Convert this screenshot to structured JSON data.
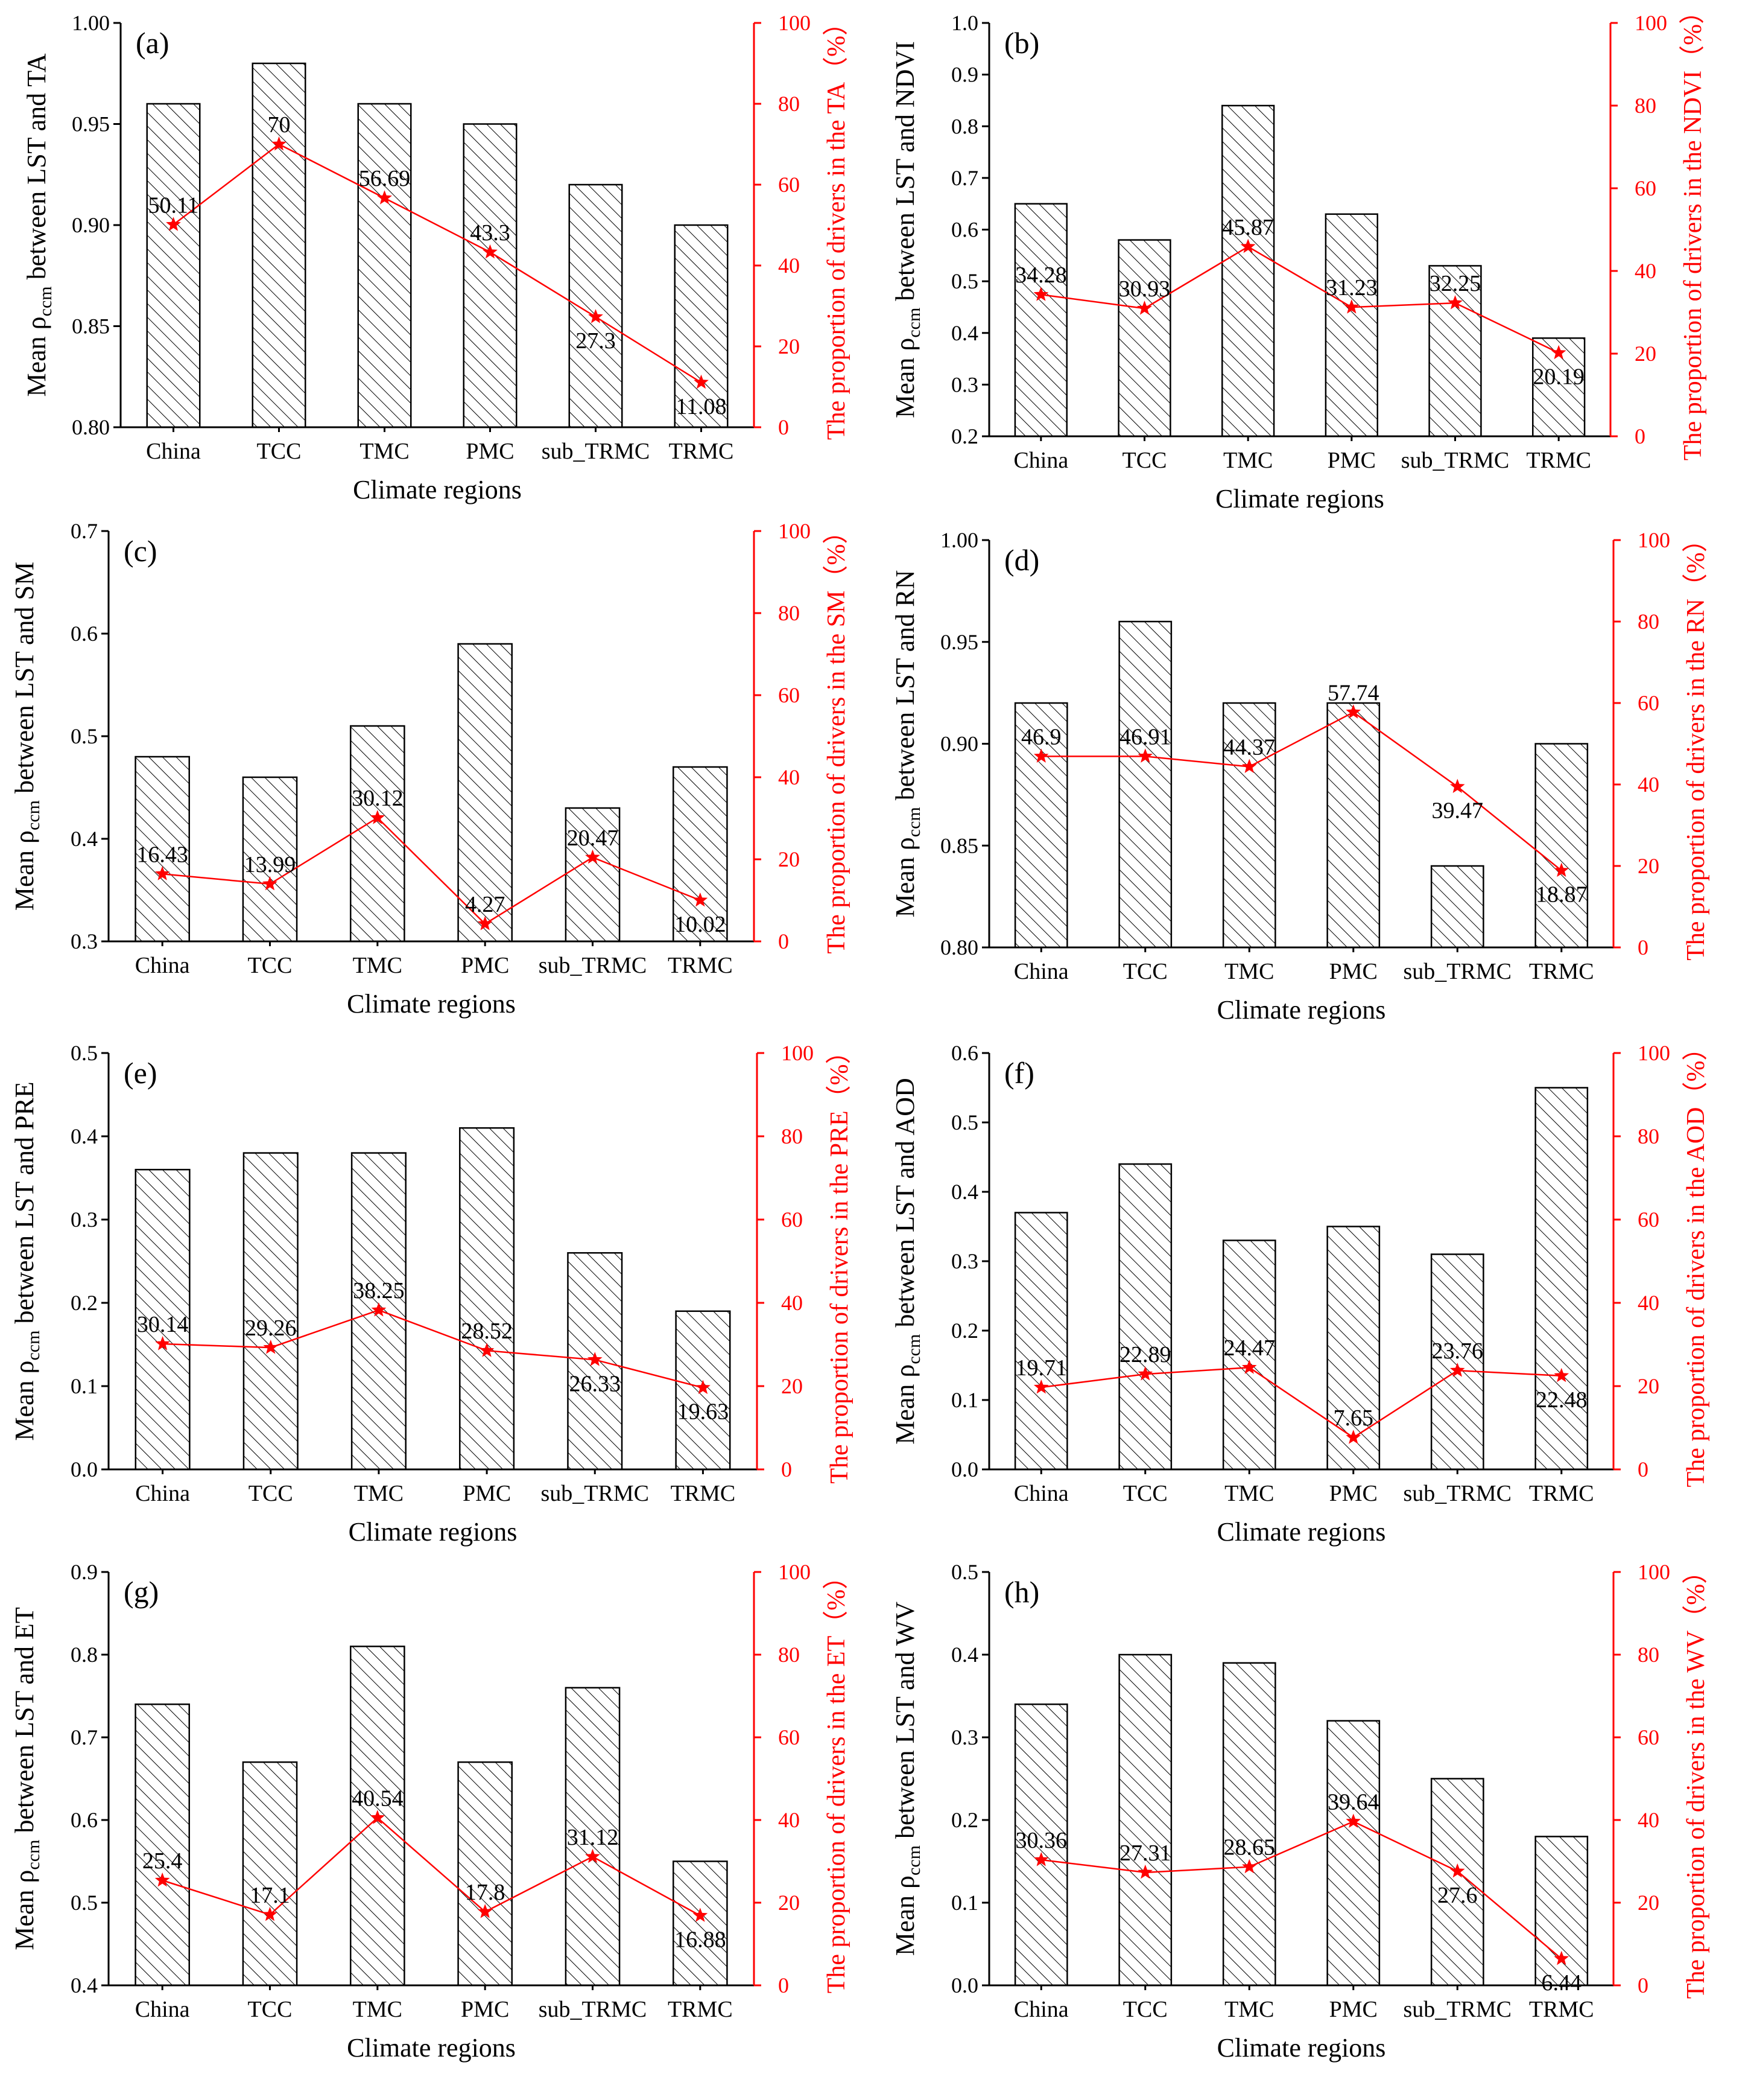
{
  "colors": {
    "bars_stroke": "#000000",
    "line": "#ff0000",
    "right_axis": "#ff0000"
  },
  "chart_data": [
    {
      "panel": "(a)",
      "type": "bar+line",
      "categories": [
        "China",
        "TCC",
        "TMC",
        "PMC",
        "sub_TRMC",
        "TRMC"
      ],
      "bar_values": [
        0.96,
        0.98,
        0.96,
        0.95,
        0.92,
        0.9
      ],
      "line_values": [
        50.11,
        70,
        56.69,
        43.3,
        27.3,
        11.08
      ],
      "line_labels": [
        "50.11",
        "70",
        "56.69",
        "43.3",
        "27.3",
        "11.08"
      ],
      "ylim": [
        0.8,
        1.0
      ],
      "yticks": [
        "0.80",
        "0.85",
        "0.90",
        "0.95",
        "1.00"
      ],
      "y2lim": [
        0,
        100
      ],
      "y2ticks": [
        "0",
        "20",
        "40",
        "60",
        "80",
        "100"
      ],
      "ylabel_main": "Mean ρ",
      "ylabel_sub": "ccm",
      "ylabel_rest": " between LST and TA",
      "y2label": "The proportion of drivers in the TA（%）",
      "xlabel": "Climate regions"
    },
    {
      "panel": "(b)",
      "type": "bar+line",
      "categories": [
        "China",
        "TCC",
        "TMC",
        "PMC",
        "sub_TRMC",
        "TRMC"
      ],
      "bar_values": [
        0.65,
        0.58,
        0.84,
        0.63,
        0.53,
        0.39
      ],
      "line_values": [
        34.28,
        30.93,
        45.87,
        31.23,
        32.25,
        20.19
      ],
      "line_labels": [
        "34.28",
        "30.93",
        "45.87",
        "31.23",
        "32.25",
        "20.19"
      ],
      "ylim": [
        0.2,
        1.0
      ],
      "yticks": [
        "0.2",
        "0.3",
        "0.4",
        "0.5",
        "0.6",
        "0.7",
        "0.8",
        "0.9",
        "1.0"
      ],
      "y2lim": [
        0,
        100
      ],
      "y2ticks": [
        "0",
        "20",
        "40",
        "60",
        "80",
        "100"
      ],
      "ylabel_main": "Mean ρ",
      "ylabel_sub": "ccm",
      "ylabel_rest": " between LST and NDVI",
      "y2label": "The proportion of drivers in the NDVI（%）",
      "xlabel": "Climate regions"
    },
    {
      "panel": "(c)",
      "type": "bar+line",
      "categories": [
        "China",
        "TCC",
        "TMC",
        "PMC",
        "sub_TRMC",
        "TRMC"
      ],
      "bar_values": [
        0.48,
        0.46,
        0.51,
        0.59,
        0.43,
        0.47
      ],
      "line_values": [
        16.43,
        13.99,
        30.12,
        4.27,
        20.47,
        10.02
      ],
      "line_labels": [
        "16.43",
        "13.99",
        "30.12",
        "4.27",
        "20.47",
        "10.02"
      ],
      "ylim": [
        0.3,
        0.7
      ],
      "yticks": [
        "0.3",
        "0.4",
        "0.5",
        "0.6",
        "0.7"
      ],
      "y2lim": [
        0,
        100
      ],
      "y2ticks": [
        "0",
        "20",
        "40",
        "60",
        "80",
        "100"
      ],
      "ylabel_main": "Mean ρ",
      "ylabel_sub": "ccm",
      "ylabel_rest": " between LST and SM",
      "y2label": "The proportion of drivers in the SM（%）",
      "xlabel": "Climate regions"
    },
    {
      "panel": "(d)",
      "type": "bar+line",
      "categories": [
        "China",
        "TCC",
        "TMC",
        "PMC",
        "sub_TRMC",
        "TRMC"
      ],
      "bar_values": [
        0.92,
        0.96,
        0.92,
        0.92,
        0.84,
        0.9
      ],
      "line_values": [
        46.9,
        46.91,
        44.37,
        57.74,
        39.47,
        18.87
      ],
      "line_labels": [
        "46.9",
        "46.91",
        "44.37",
        "57.74",
        "39.47",
        "18.87"
      ],
      "ylim": [
        0.8,
        1.0
      ],
      "yticks": [
        "0.80",
        "0.85",
        "0.90",
        "0.95",
        "1.00"
      ],
      "y2lim": [
        0,
        100
      ],
      "y2ticks": [
        "0",
        "20",
        "40",
        "60",
        "80",
        "100"
      ],
      "ylabel_main": "Mean ρ",
      "ylabel_sub": "ccm",
      "ylabel_rest": " between LST and RN",
      "y2label": "The proportion of drivers in the RN（%）",
      "xlabel": "Climate regions"
    },
    {
      "panel": "(e)",
      "type": "bar+line",
      "categories": [
        "China",
        "TCC",
        "TMC",
        "PMC",
        "sub_TRMC",
        "TRMC"
      ],
      "bar_values": [
        0.36,
        0.38,
        0.38,
        0.41,
        0.26,
        0.19
      ],
      "line_values": [
        30.14,
        29.26,
        38.25,
        28.52,
        26.33,
        19.63
      ],
      "line_labels": [
        "30.14",
        "29.26",
        "38.25",
        "28.52",
        "26.33",
        "19.63"
      ],
      "ylim": [
        0.0,
        0.5
      ],
      "yticks": [
        "0.0",
        "0.1",
        "0.2",
        "0.3",
        "0.4",
        "0.5"
      ],
      "y2lim": [
        0,
        100
      ],
      "y2ticks": [
        "0",
        "20",
        "40",
        "60",
        "80",
        "100"
      ],
      "ylabel_main": "Mean ρ",
      "ylabel_sub": "ccm",
      "ylabel_rest": " between LST and PRE",
      "y2label": "The proportion of drivers in the PRE（%）",
      "xlabel": "Climate regions"
    },
    {
      "panel": "(f)",
      "type": "bar+line",
      "categories": [
        "China",
        "TCC",
        "TMC",
        "PMC",
        "sub_TRMC",
        "TRMC"
      ],
      "bar_values": [
        0.37,
        0.44,
        0.33,
        0.35,
        0.31,
        0.55
      ],
      "line_values": [
        19.71,
        22.89,
        24.47,
        7.65,
        23.76,
        22.48
      ],
      "line_labels": [
        "19.71",
        "22.89",
        "24.47",
        "7.65",
        "23.76",
        "22.48"
      ],
      "ylim": [
        0.0,
        0.6
      ],
      "yticks": [
        "0.0",
        "0.1",
        "0.2",
        "0.3",
        "0.4",
        "0.5",
        "0.6"
      ],
      "y2lim": [
        0,
        100
      ],
      "y2ticks": [
        "0",
        "20",
        "40",
        "60",
        "80",
        "100"
      ],
      "ylabel_main": "Mean ρ",
      "ylabel_sub": "ccm",
      "ylabel_rest": " between LST and AOD",
      "y2label": "The proportion of drivers in the AOD（%）",
      "xlabel": "Climate regions"
    },
    {
      "panel": "(g)",
      "type": "bar+line",
      "categories": [
        "China",
        "TCC",
        "TMC",
        "PMC",
        "sub_TRMC",
        "TRMC"
      ],
      "bar_values": [
        0.74,
        0.67,
        0.81,
        0.67,
        0.76,
        0.55
      ],
      "line_values": [
        25.4,
        17.1,
        40.54,
        17.8,
        31.12,
        16.88
      ],
      "line_labels": [
        "25.4",
        "17.1",
        "40.54",
        "17.8",
        "31.12",
        "16.88"
      ],
      "ylim": [
        0.4,
        0.9
      ],
      "yticks": [
        "0.4",
        "0.5",
        "0.6",
        "0.7",
        "0.8",
        "0.9"
      ],
      "y2lim": [
        0,
        100
      ],
      "y2ticks": [
        "0",
        "20",
        "40",
        "60",
        "80",
        "100"
      ],
      "ylabel_main": "Mean ρ",
      "ylabel_sub": "ccm",
      "ylabel_rest": " between LST and ET",
      "y2label": "The proportion of drivers in the ET（%）",
      "xlabel": "Climate regions"
    },
    {
      "panel": "(h)",
      "type": "bar+line",
      "categories": [
        "China",
        "TCC",
        "TMC",
        "PMC",
        "sub_TRMC",
        "TRMC"
      ],
      "bar_values": [
        0.34,
        0.4,
        0.39,
        0.32,
        0.25,
        0.18
      ],
      "line_values": [
        30.36,
        27.31,
        28.65,
        39.64,
        27.6,
        6.44
      ],
      "line_labels": [
        "30.36",
        "27.31",
        "28.65",
        "39.64",
        "27.6",
        "6.44"
      ],
      "ylim": [
        0.0,
        0.5
      ],
      "yticks": [
        "0.0",
        "0.1",
        "0.2",
        "0.3",
        "0.4",
        "0.5"
      ],
      "y2lim": [
        0,
        100
      ],
      "y2ticks": [
        "0",
        "20",
        "40",
        "60",
        "80",
        "100"
      ],
      "ylabel_main": "Mean ρ",
      "ylabel_sub": "ccm",
      "ylabel_rest": " between LST and WV",
      "y2label": "The proportion of drivers in the WV（%）",
      "xlabel": "Climate regions"
    }
  ]
}
